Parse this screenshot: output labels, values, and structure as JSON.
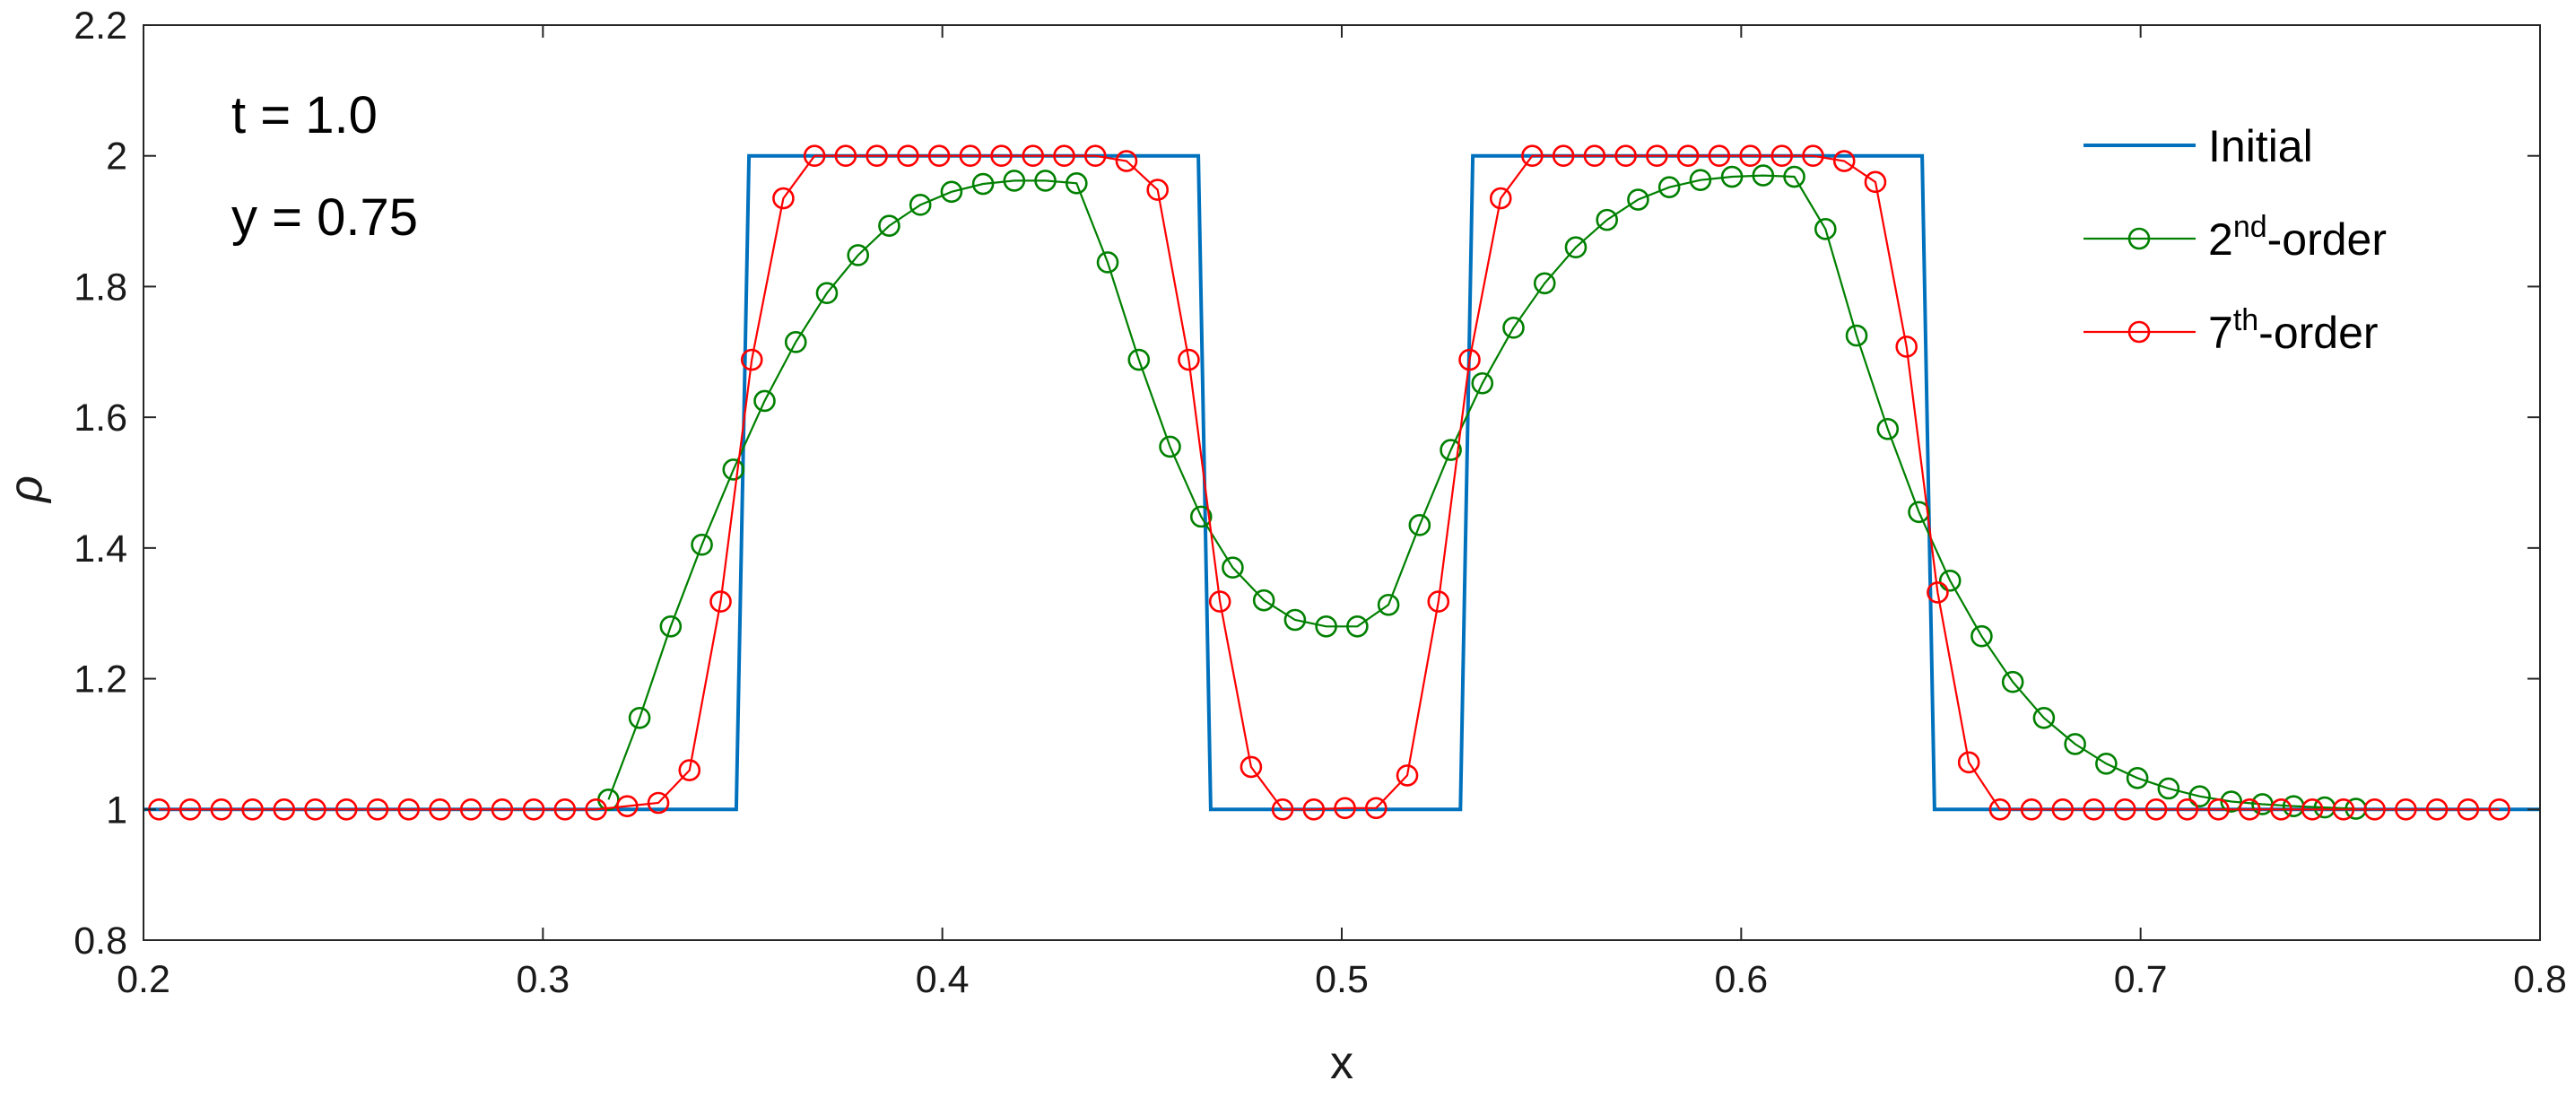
{
  "chart_data": {
    "type": "line",
    "title": "",
    "xlabel": "x",
    "ylabel": "ρ",
    "xlim": [
      0.2,
      0.8
    ],
    "ylim": [
      0.8,
      2.2
    ],
    "xticks": [
      0.2,
      0.3,
      0.4,
      0.5,
      0.6,
      0.7,
      0.8
    ],
    "yticks": [
      0.8,
      1,
      1.2,
      1.4,
      1.6,
      1.8,
      2,
      2.2
    ],
    "xtick_labels": [
      "0.2",
      "0.3",
      "0.4",
      "0.5",
      "0.6",
      "0.7",
      "0.8"
    ],
    "ytick_labels": [
      "0.8",
      "1",
      "1.2",
      "1.4",
      "1.6",
      "1.8",
      "2",
      "2.2"
    ],
    "grid": false,
    "legend_position": "top-right",
    "annotations": [
      "t = 1.0",
      "y = 0.75"
    ],
    "series": [
      {
        "name": "Initial",
        "color": "#0072BD",
        "marker": "none",
        "x": [
          0.2,
          0.3484,
          0.3516,
          0.4641,
          0.4672,
          0.5297,
          0.5328,
          0.6453,
          0.6484,
          0.8
        ],
        "y": [
          1,
          1,
          2,
          2,
          1,
          1,
          2,
          2,
          1,
          1
        ]
      },
      {
        "name": "2nd-order",
        "legend_base": "2",
        "legend_sup": "nd",
        "legend_tail": "-order",
        "color": "#008000",
        "marker": "circle",
        "x": [
          0.3164,
          0.3242,
          0.332,
          0.3398,
          0.3477,
          0.3555,
          0.3633,
          0.3711,
          0.3789,
          0.3867,
          0.3945,
          0.4023,
          0.4102,
          0.418,
          0.4258,
          0.4336,
          0.4414,
          0.4492,
          0.457,
          0.4648,
          0.4727,
          0.4805,
          0.4883,
          0.4961,
          0.5039,
          0.5117,
          0.5195,
          0.5273,
          0.5352,
          0.543,
          0.5508,
          0.5586,
          0.5664,
          0.5742,
          0.582,
          0.5898,
          0.5977,
          0.6055,
          0.6133,
          0.6211,
          0.6289,
          0.6367,
          0.6445,
          0.6523,
          0.6602,
          0.668,
          0.6758,
          0.6836,
          0.6914,
          0.6992,
          0.707,
          0.7148,
          0.7227,
          0.7305,
          0.7383,
          0.7461,
          0.7539
        ],
        "y": [
          1.015,
          1.14,
          1.28,
          1.405,
          1.52,
          1.625,
          1.715,
          1.79,
          1.848,
          1.893,
          1.925,
          1.945,
          1.957,
          1.962,
          1.962,
          1.958,
          1.837,
          1.688,
          1.555,
          1.448,
          1.37,
          1.32,
          1.29,
          1.28,
          1.28,
          1.313,
          1.435,
          1.55,
          1.652,
          1.737,
          1.805,
          1.86,
          1.902,
          1.933,
          1.952,
          1.963,
          1.968,
          1.97,
          1.968,
          1.888,
          1.725,
          1.582,
          1.455,
          1.35,
          1.265,
          1.195,
          1.14,
          1.1,
          1.07,
          1.048,
          1.032,
          1.02,
          1.012,
          1.008,
          1.005,
          1.003,
          1.001
        ]
      },
      {
        "name": "7th-order",
        "legend_base": "7",
        "legend_sup": "th",
        "legend_tail": "-order",
        "color": "#FF0000",
        "marker": "circle",
        "x": [
          0.2039,
          0.2117,
          0.2195,
          0.2273,
          0.2352,
          0.243,
          0.2508,
          0.2586,
          0.2664,
          0.2742,
          0.282,
          0.2898,
          0.2977,
          0.3055,
          0.3133,
          0.3211,
          0.3289,
          0.3367,
          0.3445,
          0.3523,
          0.3602,
          0.368,
          0.3758,
          0.3836,
          0.3914,
          0.3992,
          0.407,
          0.4148,
          0.4227,
          0.4305,
          0.4383,
          0.4461,
          0.4539,
          0.4617,
          0.4695,
          0.4773,
          0.4852,
          0.493,
          0.5008,
          0.5086,
          0.5164,
          0.5242,
          0.532,
          0.5398,
          0.5477,
          0.5555,
          0.5633,
          0.5711,
          0.5789,
          0.5867,
          0.5945,
          0.6023,
          0.6102,
          0.618,
          0.6258,
          0.6336,
          0.6414,
          0.6492,
          0.657,
          0.6648,
          0.6727,
          0.6805,
          0.6883,
          0.6961,
          0.7039,
          0.7117,
          0.7195,
          0.7273,
          0.7352,
          0.743,
          0.7508,
          0.7586,
          0.7664,
          0.7742,
          0.782,
          0.7898
        ],
        "y": [
          1,
          1,
          1,
          1,
          1,
          1,
          1,
          1,
          1,
          1,
          1,
          1,
          1,
          1,
          1,
          1.005,
          1.01,
          1.06,
          1.318,
          1.688,
          1.935,
          2,
          2,
          2,
          2,
          2,
          2,
          2,
          2,
          2,
          2,
          1.992,
          1.948,
          1.688,
          1.318,
          1.065,
          1,
          1,
          1.002,
          1.002,
          1.052,
          1.318,
          1.688,
          1.935,
          2,
          2,
          2,
          2,
          2,
          2,
          2,
          2,
          2,
          2,
          1.992,
          1.96,
          1.708,
          1.332,
          1.072,
          1,
          1,
          1,
          1,
          1,
          1,
          1,
          1,
          1,
          1,
          1,
          1,
          1,
          1,
          1,
          1,
          1
        ]
      }
    ]
  }
}
